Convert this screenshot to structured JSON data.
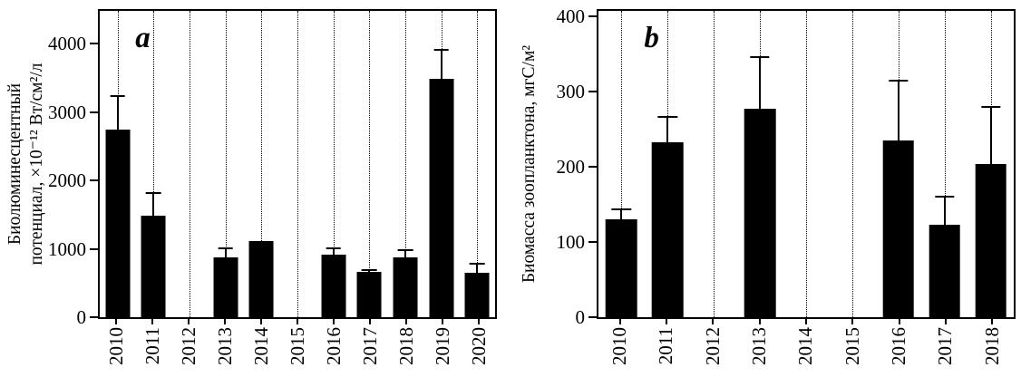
{
  "figure": {
    "background": "#ffffff",
    "bar_color": "#000000",
    "axis_color": "#000000",
    "gridline_style": "dotted-vertical"
  },
  "chart_data": [
    {
      "type": "bar",
      "panel_label": "a",
      "ylabel": "Биолюминесцентный потенциал, ×10⁻¹² Вт/см²/л",
      "ylabel_lines": [
        "Биолюминесцентный",
        "потенциал, ×10⁻¹² Вт/см²/л"
      ],
      "xlabel": "",
      "categories": [
        "2010",
        "2011",
        "2012",
        "2013",
        "2014",
        "2015",
        "2016",
        "2017",
        "2018",
        "2019",
        "2020"
      ],
      "values": [
        2750,
        1480,
        null,
        880,
        1120,
        null,
        920,
        660,
        880,
        3480,
        650
      ],
      "errors_plus": [
        500,
        350,
        null,
        140,
        null,
        null,
        100,
        40,
        120,
        450,
        150
      ],
      "ylim": [
        0,
        4480
      ],
      "yticks": [
        0,
        1000,
        2000,
        3000,
        4000
      ],
      "grid": "vertical-dotted",
      "legend": null
    },
    {
      "type": "bar",
      "panel_label": "b",
      "ylabel": "Биомасса зоопланктона, мгС/м²",
      "ylabel_lines": [
        "Биомасса зоопланктона, мгС/м²"
      ],
      "xlabel": "",
      "categories": [
        "2010",
        "2011",
        "2012",
        "2013",
        "2014",
        "2015",
        "2016",
        "2017",
        "2018"
      ],
      "values": [
        130,
        232,
        null,
        277,
        null,
        null,
        235,
        123,
        203
      ],
      "errors_plus": [
        15,
        35,
        null,
        70,
        null,
        null,
        80,
        38,
        78
      ],
      "ylim": [
        0,
        407
      ],
      "yticks": [
        0,
        100,
        200,
        300,
        400
      ],
      "grid": "vertical-dotted",
      "legend": null
    }
  ]
}
